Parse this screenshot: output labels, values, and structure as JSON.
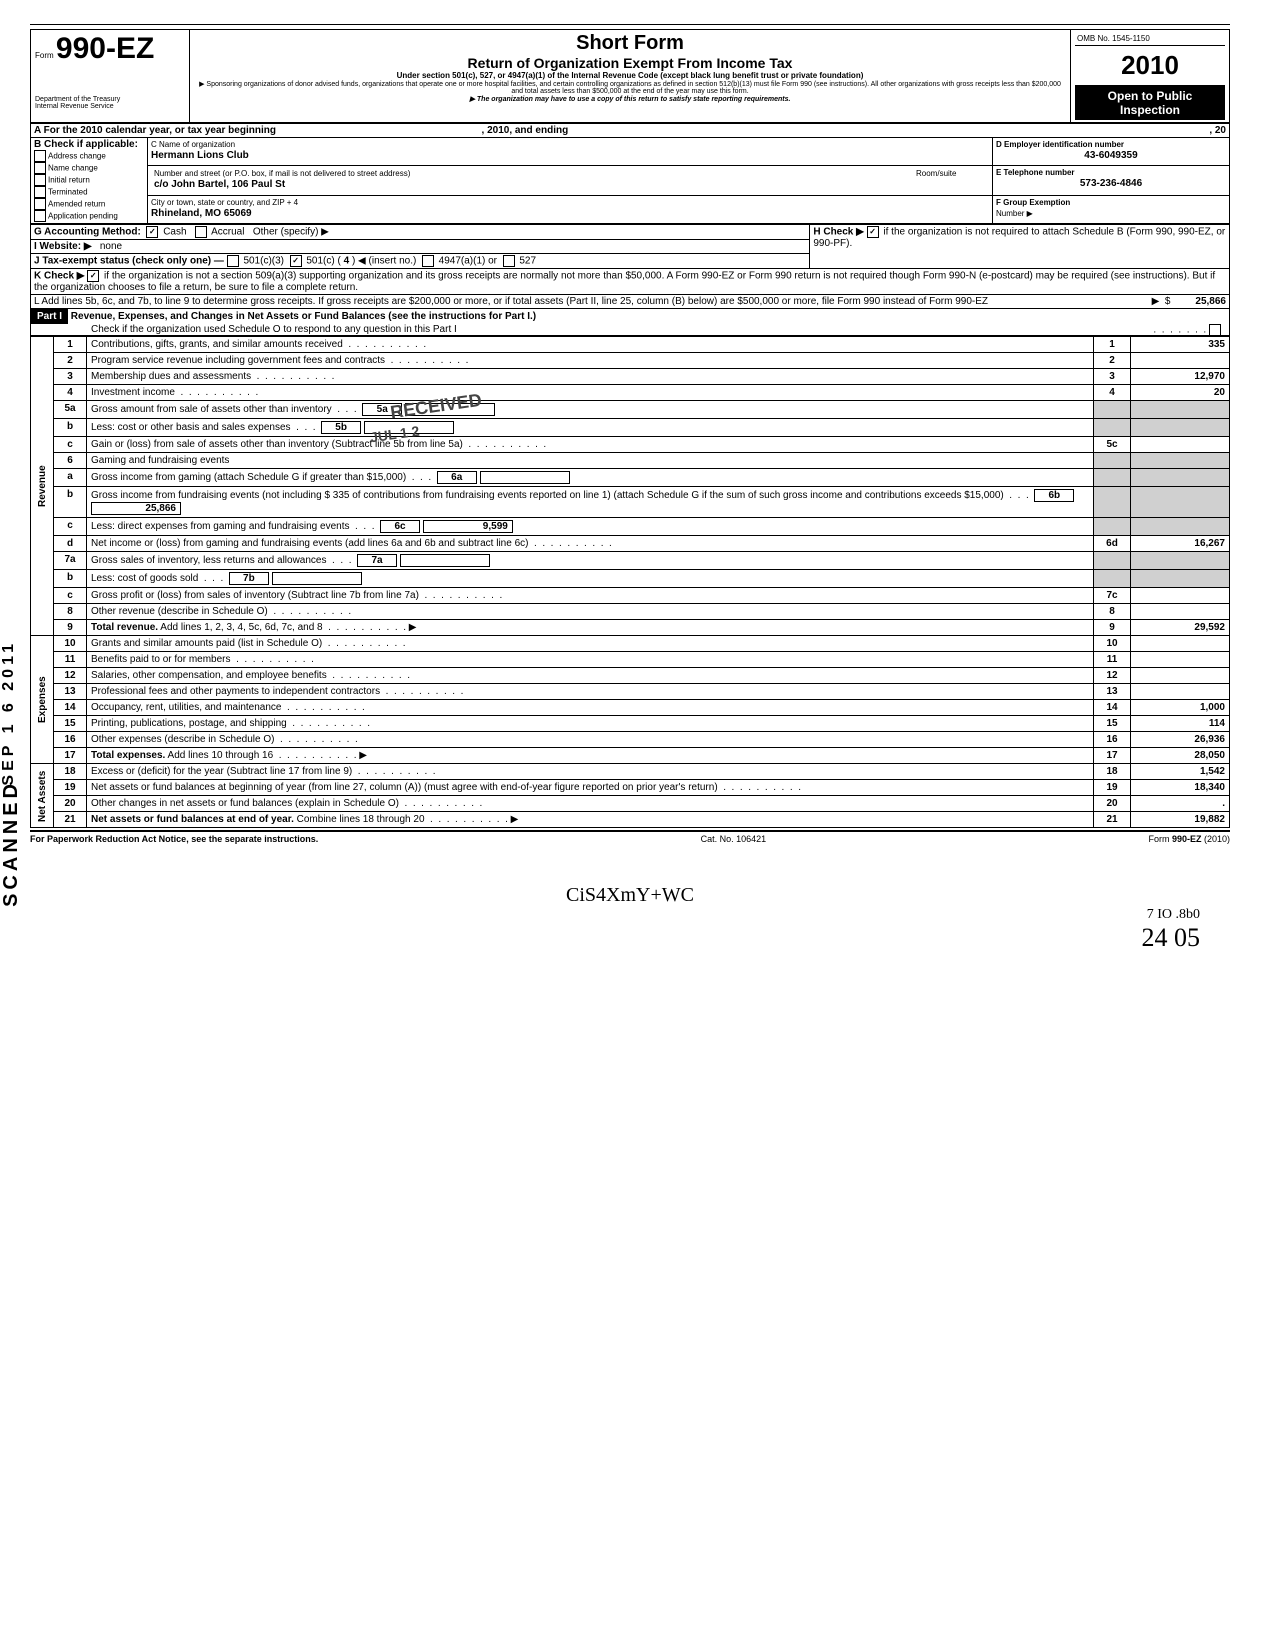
{
  "meta": {
    "omb": "OMB No. 1545-1150",
    "year": "2010",
    "open": "Open to Public",
    "inspection": "Inspection",
    "dept": "Department of the Treasury",
    "irs": "Internal Revenue Service",
    "form_prefix": "Form",
    "form_number": "990-EZ",
    "title1": "Short Form",
    "title2": "Return of Organization Exempt From Income Tax",
    "under": "Under section 501(c), 527, or 4947(a)(1) of the Internal Revenue Code (except black lung benefit trust or private foundation)",
    "sponsor": "▶ Sponsoring organizations of donor advised funds, organizations that operate one or more hospital facilities, and certain controlling organizations as defined in section 512(b)(13) must file Form 990 (see instructions). All other organizations with gross receipts less than $200,000 and total assets less than $500,000 at the end of the year may use this form.",
    "copy": "▶ The organization may have to use a copy of this return to satisfy state reporting requirements."
  },
  "sectionA": {
    "a_label": "A  For the 2010 calendar year, or tax year beginning",
    "a_mid": ", 2010, and ending",
    "a_end": ", 20",
    "b_label": "B  Check if applicable:",
    "b_items": [
      "Address change",
      "Name change",
      "Initial return",
      "Terminated",
      "Amended return",
      "Application pending"
    ],
    "c_label": "C  Name of organization",
    "c_name": "Hermann Lions Club",
    "c_street_label": "Number and street (or P.O. box, if mail is not delivered to street address)",
    "c_street": "c/o John Bartel, 106 Paul St",
    "c_room_label": "Room/suite",
    "c_city_label": "City or town, state or country, and ZIP + 4",
    "c_city": "Rhineland, MO 65069",
    "d_label": "D Employer identification number",
    "d_value": "43-6049359",
    "e_label": "E  Telephone number",
    "e_value": "573-236-4846",
    "f_label": "F  Group Exemption",
    "f_sub": "Number  ▶",
    "g_label": "G  Accounting Method:",
    "g_cash": "Cash",
    "g_accrual": "Accrual",
    "g_other": "Other (specify) ▶",
    "h_label": "H  Check ▶",
    "h_text": "if the organization is not required to attach Schedule B (Form 990, 990-EZ, or 990-PF).",
    "i_label": "I   Website: ▶",
    "i_value": "none",
    "j_label": "J  Tax-exempt status (check only one) —",
    "j_501c3": "501(c)(3)",
    "j_501c": "501(c) (",
    "j_501c_num": "4",
    "j_501c_after": ")  ◀ (insert no.)",
    "j_4947": "4947(a)(1) or",
    "j_527": "527",
    "k_label": "K  Check ▶",
    "k_text": "if the organization is not a section 509(a)(3) supporting organization and its gross receipts are normally not more than $50,000.  A Form 990-EZ or Form 990 return is not required though Form 990-N (e-postcard) may be required (see instructions). But if the organization chooses to file a return, be sure to file a complete return.",
    "l_text": "L  Add lines 5b, 6c, and 7b, to line 9 to determine gross receipts. If gross receipts are $200,000 or more, or if total assets (Part II, line 25, column (B) below) are $500,000 or more, file Form 990 instead of Form 990-EZ",
    "l_amount": "25,866"
  },
  "part1": {
    "header": "Part I",
    "title": "Revenue, Expenses, and Changes in Net Assets or Fund Balances (see the instructions for Part I.)",
    "check_line": "Check if the organization used Schedule O to respond to any question in this Part I",
    "revenue_label": "Revenue",
    "expenses_label": "Expenses",
    "netassets_label": "Net Assets",
    "stamp1": "RECEIVED",
    "stamp2": "JUL 1 2",
    "lines": [
      {
        "no": "1",
        "desc": "Contributions, gifts, grants, and similar amounts received",
        "r": "1",
        "amt": "335"
      },
      {
        "no": "2",
        "desc": "Program service revenue including government fees and contracts",
        "r": "2",
        "amt": ""
      },
      {
        "no": "3",
        "desc": "Membership dues and assessments",
        "r": "3",
        "amt": "12,970"
      },
      {
        "no": "4",
        "desc": "Investment income",
        "r": "4",
        "amt": "20"
      },
      {
        "no": "5a",
        "desc": "Gross amount from sale of assets other than inventory",
        "mid": "5a",
        "midamt": ""
      },
      {
        "no": "b",
        "desc": "Less: cost or other basis and sales expenses",
        "mid": "5b",
        "midamt": ""
      },
      {
        "no": "c",
        "desc": "Gain or (loss) from sale of assets other than inventory (Subtract line 5b from line 5a)",
        "r": "5c",
        "amt": ""
      },
      {
        "no": "6",
        "desc": "Gaming and fundraising events"
      },
      {
        "no": "a",
        "desc": "Gross income from gaming (attach Schedule G if greater than $15,000)",
        "mid": "6a",
        "midamt": ""
      },
      {
        "no": "b",
        "desc": "Gross income from fundraising events (not including $            335 of contributions from fundraising events reported on line 1) (attach Schedule G if the sum of such gross income and contributions exceeds $15,000)",
        "mid": "6b",
        "midamt": "25,866"
      },
      {
        "no": "c",
        "desc": "Less: direct expenses from gaming and fundraising events",
        "mid": "6c",
        "midamt": "9,599"
      },
      {
        "no": "d",
        "desc": "Net income or (loss) from gaming and fundraising events (add lines 6a and 6b and subtract line 6c)",
        "r": "6d",
        "amt": "16,267"
      },
      {
        "no": "7a",
        "desc": "Gross sales of inventory, less returns and allowances",
        "mid": "7a",
        "midamt": ""
      },
      {
        "no": "b",
        "desc": "Less: cost of goods sold",
        "mid": "7b",
        "midamt": ""
      },
      {
        "no": "c",
        "desc": "Gross profit or (loss) from sales of inventory (Subtract line 7b from line 7a)",
        "r": "7c",
        "amt": ""
      },
      {
        "no": "8",
        "desc": "Other revenue (describe in Schedule O)",
        "r": "8",
        "amt": ""
      },
      {
        "no": "9",
        "desc": "Total revenue. Add lines 1, 2, 3, 4, 5c, 6d, 7c, and 8",
        "r": "9",
        "amt": "29,592",
        "arrow": true,
        "bold": true
      },
      {
        "no": "10",
        "desc": "Grants and similar amounts paid (list in Schedule O)",
        "r": "10",
        "amt": ""
      },
      {
        "no": "11",
        "desc": "Benefits paid to or for members",
        "r": "11",
        "amt": ""
      },
      {
        "no": "12",
        "desc": "Salaries, other compensation, and employee benefits",
        "r": "12",
        "amt": ""
      },
      {
        "no": "13",
        "desc": "Professional fees and other payments to independent contractors",
        "r": "13",
        "amt": ""
      },
      {
        "no": "14",
        "desc": "Occupancy, rent, utilities, and maintenance",
        "r": "14",
        "amt": "1,000"
      },
      {
        "no": "15",
        "desc": "Printing, publications, postage, and shipping",
        "r": "15",
        "amt": "114"
      },
      {
        "no": "16",
        "desc": "Other expenses (describe in Schedule O)",
        "r": "16",
        "amt": "26,936"
      },
      {
        "no": "17",
        "desc": "Total expenses. Add lines 10 through 16",
        "r": "17",
        "amt": "28,050",
        "arrow": true,
        "bold": true
      },
      {
        "no": "18",
        "desc": "Excess or (deficit) for the year (Subtract line 17 from line 9)",
        "r": "18",
        "amt": "1,542"
      },
      {
        "no": "19",
        "desc": "Net assets or fund balances at beginning of year (from line 27, column (A)) (must agree with end-of-year figure reported on prior year's return)",
        "r": "19",
        "amt": "18,340"
      },
      {
        "no": "20",
        "desc": "Other changes in net assets or fund balances (explain in Schedule O)",
        "r": "20",
        "amt": "."
      },
      {
        "no": "21",
        "desc": "Net assets or fund balances at end of year. Combine lines 18 through 20",
        "r": "21",
        "amt": "19,882",
        "arrow": true,
        "bold": true
      }
    ]
  },
  "footer": {
    "left": "For Paperwork Reduction Act Notice, see the separate instructions.",
    "mid": "Cat. No. 106421",
    "right": "Form 990-EZ (2010)"
  },
  "margin": {
    "scanned": "SCANNED",
    "sep": "SEP 1 6 2011",
    "hand1": "CiS4XmY+WC",
    "hand2": "7 IO .8b0",
    "hand3": "24 05"
  }
}
